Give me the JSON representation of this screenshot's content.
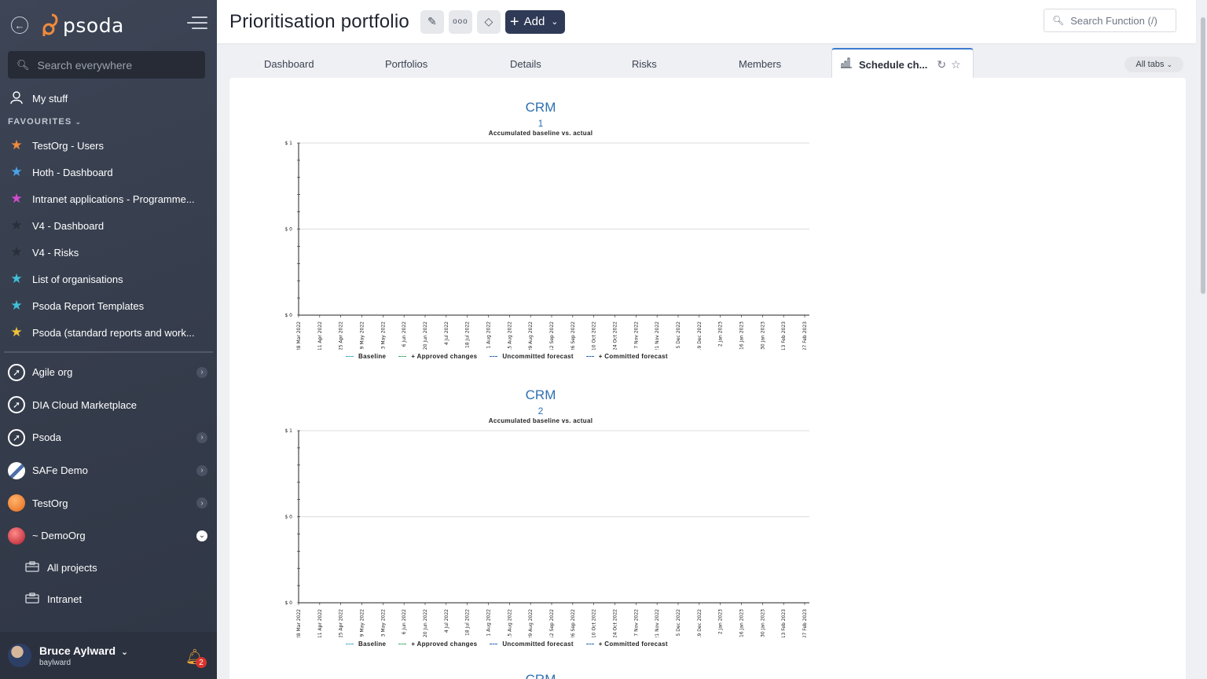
{
  "app": {
    "logo_text": "psoda"
  },
  "sidebar": {
    "search_placeholder": "Search everywhere",
    "my_stuff": "My stuff",
    "favourites_header": "FAVOURITES",
    "favourites": [
      {
        "label": "TestOrg - Users",
        "color": "#f08a3c"
      },
      {
        "label": "Hoth - Dashboard",
        "color": "#4aa3e8"
      },
      {
        "label": "Intranet applications - Programme...",
        "color": "#d54bd0"
      },
      {
        "label": "V4 - Dashboard",
        "color": "#2a2f3a"
      },
      {
        "label": "V4 - Risks",
        "color": "#2a2f3a"
      },
      {
        "label": "List of organisations",
        "color": "#3fc0d8"
      },
      {
        "label": "Psoda Report Templates",
        "color": "#3fc0d8"
      },
      {
        "label": "Psoda (standard reports and work...",
        "color": "#f0c23a"
      }
    ],
    "orgs": [
      {
        "label": "Agile org",
        "icon": "rocket-icon",
        "has_chevron": true
      },
      {
        "label": "DIA Cloud Marketplace",
        "icon": "rocket-icon",
        "has_chevron": false
      },
      {
        "label": "Psoda",
        "icon": "rocket-icon",
        "has_chevron": true
      },
      {
        "label": "SAFe Demo",
        "icon": "mountain-icon",
        "has_chevron": true
      },
      {
        "label": "TestOrg",
        "icon": "orange-globe-icon",
        "has_chevron": true
      },
      {
        "label": "~ DemoOrg",
        "icon": "red-globe-icon",
        "has_chevron": true,
        "expanded": true
      }
    ],
    "sub_items": [
      {
        "label": "All projects"
      },
      {
        "label": "Intranet"
      }
    ],
    "user": {
      "name": "Bruce Aylward",
      "handle": "baylward",
      "notifications": "2"
    }
  },
  "header": {
    "title": "Prioritisation portfolio",
    "add_label": "Add",
    "search_placeholder": "Search Function (/)"
  },
  "tabs": {
    "items": [
      "Dashboard",
      "Portfolios",
      "Details",
      "Risks",
      "Members"
    ],
    "active": "Schedule ch...",
    "all_tabs": "All tabs"
  },
  "charts": [
    {
      "title": "CRM",
      "subtitle": "1",
      "caption": "Accumulated baseline vs. actual",
      "y_ticks": [
        "$ 1",
        "$ 0",
        "$ 0"
      ],
      "x_ticks": [
        "28 Mar 2022",
        "11 Apr 2022",
        "25 Apr 2022",
        "9 May 2022",
        "23 May 2022",
        "6 Jun 2022",
        "20 Jun 2022",
        "4 Jul 2022",
        "18 Jul 2022",
        "1 Aug 2022",
        "15 Aug 2022",
        "29 Aug 2022",
        "12 Sep 2022",
        "26 Sep 2022",
        "10 Oct 2022",
        "24 Oct 2022",
        "7 Nov 2022",
        "21 Nov 2022",
        "5 Dec 2022",
        "19 Dec 2022",
        "2 Jan 2023",
        "16 Jan 2023",
        "30 Jan 2023",
        "13 Feb 2023",
        "27 Feb 2023"
      ],
      "legend": [
        {
          "label": "Baseline",
          "color": "#3fa9c8"
        },
        {
          "label": "+ Approved changes",
          "color": "#3aa864"
        },
        {
          "label": "Uncommitted forecast",
          "color": "#2a64b0"
        },
        {
          "label": "+ Committed forecast",
          "color": "#2a64b0"
        }
      ]
    },
    {
      "title": "CRM",
      "subtitle": "2",
      "caption": "Accumulated baseline vs. actual",
      "y_ticks": [
        "$ 1",
        "$ 0",
        "$ 0"
      ],
      "x_ticks": [
        "28 Mar 2022",
        "11 Apr 2022",
        "25 Apr 2022",
        "9 May 2022",
        "23 May 2022",
        "6 Jun 2022",
        "20 Jun 2022",
        "4 Jul 2022",
        "18 Jul 2022",
        "1 Aug 2022",
        "15 Aug 2022",
        "29 Aug 2022",
        "12 Sep 2022",
        "26 Sep 2022",
        "10 Oct 2022",
        "24 Oct 2022",
        "7 Nov 2022",
        "21 Nov 2022",
        "5 Dec 2022",
        "19 Dec 2022",
        "2 Jan 2023",
        "16 Jan 2023",
        "30 Jan 2023",
        "13 Feb 2023",
        "27 Feb 2023"
      ],
      "legend": [
        {
          "label": "Baseline",
          "color": "#3fa9c8"
        },
        {
          "label": "+ Approved changes",
          "color": "#3aa864"
        },
        {
          "label": "Uncommitted forecast",
          "color": "#2a64b0"
        },
        {
          "label": "+ Committed forecast",
          "color": "#2a64b0"
        }
      ]
    },
    {
      "title": "CRM"
    }
  ]
}
